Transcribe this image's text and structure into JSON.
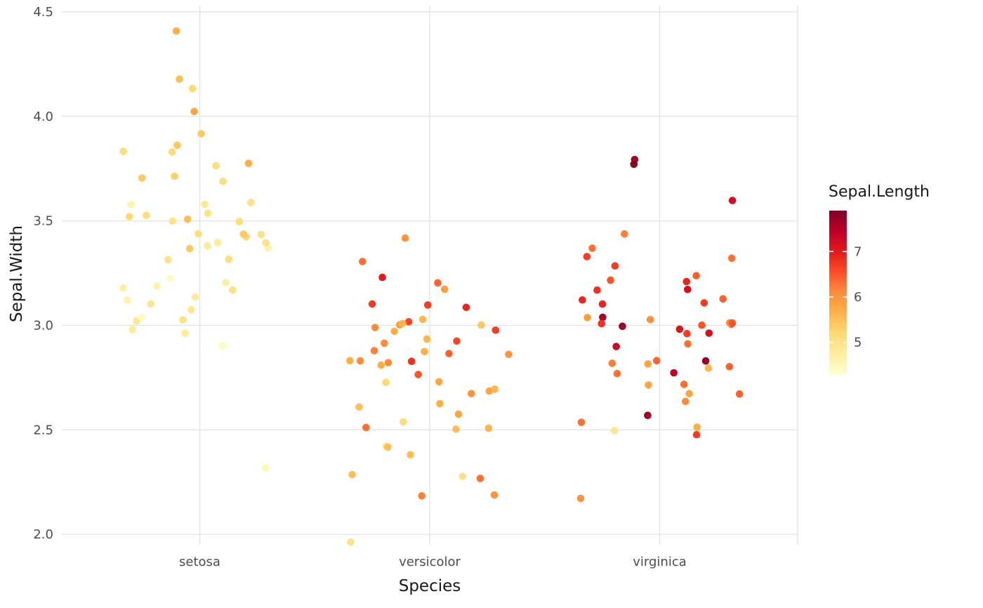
{
  "figure": {
    "background": "#FFFFFF",
    "grid_color": "#E3E3E3",
    "axis_text_color": "#4D4D4D",
    "axis_title_color": "#1A1A1A"
  },
  "chart_data": {
    "type": "scatter",
    "subtype": "jitter",
    "title": "",
    "xlabel": "Species",
    "ylabel": "Sepal.Width",
    "categories": [
      "setosa",
      "versicolor",
      "virginica"
    ],
    "y_ticks": [
      "2.0",
      "2.5",
      "3.0",
      "3.5",
      "4.0",
      "4.5"
    ],
    "ylim": [
      1.95,
      4.53
    ],
    "grid": true,
    "point_radius": 5.3,
    "jitter_width": 0.35,
    "jitter_height": 0.04,
    "legend": {
      "title": "Sepal.Length",
      "position": "right",
      "type": "colorbar",
      "domain": [
        4.3,
        7.9
      ],
      "ticks": [
        "5",
        "6",
        "7"
      ],
      "palette": [
        "#FFFFCC",
        "#FFEDA0",
        "#FED976",
        "#FEB24C",
        "#FD8D3C",
        "#FC4E2A",
        "#E31A1C",
        "#BD0026",
        "#800026"
      ]
    },
    "series": [
      {
        "name": "setosa",
        "sepal_length": [
          5.1,
          4.9,
          4.7,
          4.6,
          5.0,
          5.4,
          4.6,
          5.0,
          4.4,
          4.9,
          5.4,
          4.8,
          4.8,
          4.3,
          5.8,
          5.7,
          5.4,
          5.1,
          5.7,
          5.1,
          5.4,
          5.1,
          4.6,
          5.1,
          4.8,
          5.0,
          5.0,
          5.2,
          5.2,
          4.7,
          4.8,
          5.4,
          5.2,
          5.5,
          4.9,
          5.0,
          5.5,
          4.9,
          4.4,
          5.1,
          5.0,
          4.5,
          4.4,
          5.0,
          5.1,
          4.8,
          5.1,
          4.6,
          5.3,
          5.0
        ],
        "sepal_width": [
          3.5,
          3.0,
          3.2,
          3.1,
          3.6,
          3.9,
          3.4,
          3.4,
          2.9,
          3.1,
          3.7,
          3.4,
          3.0,
          3.0,
          4.0,
          4.4,
          3.9,
          3.5,
          3.8,
          3.8,
          3.4,
          3.7,
          3.6,
          3.3,
          3.4,
          3.0,
          3.4,
          3.5,
          3.4,
          3.2,
          3.1,
          3.4,
          4.1,
          4.2,
          3.1,
          3.2,
          3.5,
          3.6,
          3.0,
          3.4,
          3.5,
          2.3,
          3.2,
          3.5,
          3.8,
          3.0,
          3.8,
          3.2,
          3.7,
          3.3
        ]
      },
      {
        "name": "versicolor",
        "sepal_length": [
          7.0,
          6.4,
          6.9,
          5.5,
          6.5,
          5.7,
          6.3,
          4.9,
          6.6,
          5.2,
          5.0,
          5.9,
          6.0,
          6.1,
          5.6,
          6.7,
          5.6,
          5.8,
          6.2,
          5.6,
          5.9,
          6.1,
          6.3,
          6.1,
          6.4,
          6.6,
          6.8,
          6.7,
          6.0,
          5.7,
          5.5,
          5.5,
          5.8,
          6.0,
          5.4,
          6.0,
          6.7,
          6.3,
          5.6,
          5.5,
          5.5,
          6.1,
          5.8,
          5.0,
          5.6,
          5.7,
          5.7,
          6.2,
          5.1,
          5.7
        ],
        "sepal_width": [
          3.2,
          3.2,
          3.1,
          2.3,
          2.8,
          2.8,
          3.3,
          2.4,
          2.9,
          2.7,
          2.0,
          3.0,
          2.2,
          2.9,
          2.9,
          3.1,
          3.0,
          2.7,
          2.2,
          2.5,
          3.2,
          2.8,
          2.5,
          2.8,
          2.9,
          3.0,
          2.8,
          3.0,
          2.9,
          2.6,
          2.4,
          2.4,
          2.7,
          2.7,
          3.0,
          3.4,
          3.1,
          2.3,
          3.0,
          2.5,
          2.6,
          3.0,
          2.6,
          2.3,
          2.7,
          3.0,
          2.9,
          2.9,
          2.5,
          2.8
        ]
      },
      {
        "name": "virginica",
        "sepal_length": [
          6.3,
          5.8,
          7.1,
          6.3,
          6.5,
          7.6,
          4.9,
          7.3,
          6.7,
          7.2,
          6.5,
          6.4,
          6.8,
          5.7,
          5.8,
          6.4,
          6.5,
          7.7,
          7.7,
          6.0,
          6.9,
          5.6,
          7.7,
          6.3,
          6.7,
          7.2,
          6.2,
          6.1,
          6.4,
          7.2,
          7.4,
          7.9,
          6.4,
          6.3,
          6.1,
          7.7,
          6.3,
          6.4,
          6.0,
          6.9,
          6.7,
          6.9,
          5.8,
          6.8,
          6.7,
          6.7,
          6.3,
          6.5,
          6.2,
          5.9
        ],
        "sepal_width": [
          3.3,
          2.7,
          3.0,
          2.9,
          3.0,
          3.0,
          2.5,
          2.9,
          2.5,
          3.6,
          3.2,
          2.7,
          3.0,
          2.5,
          2.8,
          3.2,
          3.0,
          3.8,
          2.6,
          2.2,
          3.2,
          2.8,
          2.8,
          2.7,
          3.3,
          3.2,
          2.8,
          3.0,
          2.8,
          3.0,
          2.8,
          3.8,
          2.8,
          2.8,
          2.6,
          3.0,
          3.4,
          3.1,
          3.0,
          3.1,
          3.1,
          3.1,
          2.7,
          3.2,
          3.3,
          3.0,
          2.5,
          3.0,
          3.4,
          3.0
        ]
      }
    ]
  }
}
